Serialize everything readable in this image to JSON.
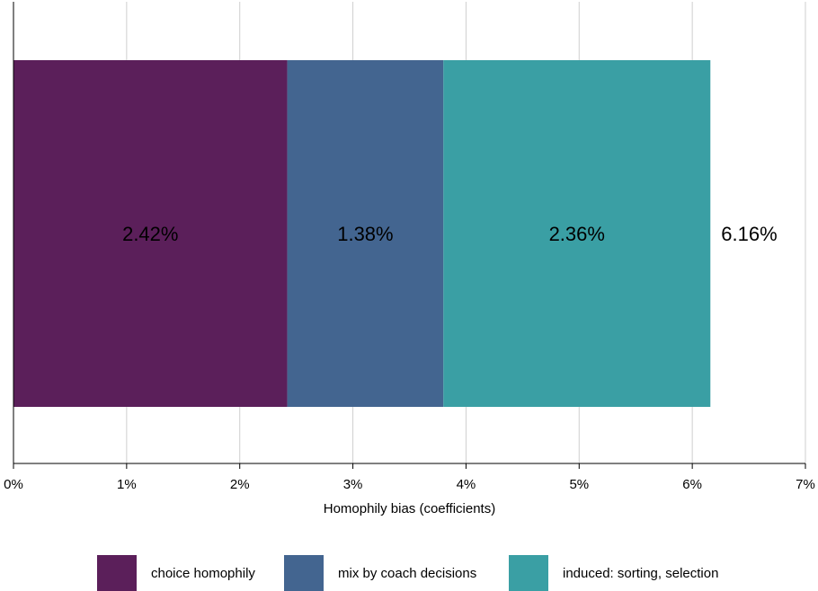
{
  "chart_data": {
    "type": "bar",
    "orientation": "horizontal",
    "stacked": true,
    "xlabel": "Homophily bias (coefficients)",
    "xlim": [
      0,
      7
    ],
    "x_ticks": [
      "0%",
      "1%",
      "2%",
      "3%",
      "4%",
      "5%",
      "6%",
      "7%"
    ],
    "grid": true,
    "legend_position": "bottom",
    "series": [
      {
        "name": "choice homophily",
        "value": 2.42,
        "label": "2.42%",
        "color": "#5b1f5a"
      },
      {
        "name": "mix by coach decisions",
        "value": 1.38,
        "label": "1.38%",
        "color": "#436590"
      },
      {
        "name": "induced: sorting, selection",
        "value": 2.36,
        "label": "2.36%",
        "color": "#3a9fa4"
      }
    ],
    "total": {
      "value": 6.16,
      "label": "6.16%"
    }
  }
}
